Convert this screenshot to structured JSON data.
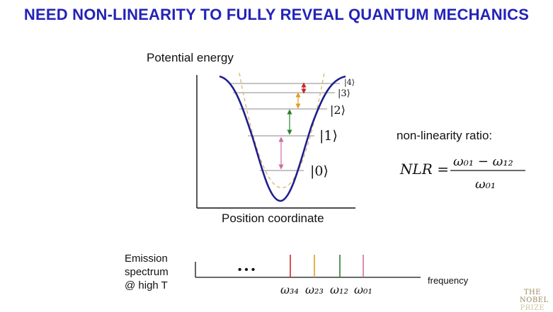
{
  "title": "NEED NON-LINEARITY TO FULLY REVEAL QUANTUM MECHANICS",
  "potential_plot": {
    "y_axis_label": "Potential energy",
    "x_axis_label": "Position coordinate",
    "states": [
      {
        "label": "|0⟩"
      },
      {
        "label": "|1⟩"
      },
      {
        "label": "|2⟩"
      },
      {
        "label": "|3⟩"
      },
      {
        "label": "|4⟩"
      }
    ],
    "colors": {
      "well": "#1f1f8f",
      "harmonic_reference": "#d8b46a",
      "arrow_01": "#cc6fa0",
      "arrow_12": "#2e7d32",
      "arrow_23": "#e0a020",
      "arrow_34": "#c62828"
    }
  },
  "nlr": {
    "caption": "non-linearity ratio:",
    "lhs": "NLR =",
    "numerator": "ω₀₁ − ω₁₂",
    "denominator": "ω₀₁"
  },
  "spectrum": {
    "label_lines": [
      "Emission",
      "spectrum",
      "@ high T"
    ],
    "ellipsis": "• • •",
    "axis_label": "frequency",
    "lines": [
      {
        "label": "ω₃₄",
        "color": "#c62828"
      },
      {
        "label": "ω₂₃",
        "color": "#e0a020"
      },
      {
        "label": "ω₁₂",
        "color": "#2e7d32"
      },
      {
        "label": "ω₀₁",
        "color": "#cc6fa0"
      }
    ]
  },
  "logo": {
    "lines": [
      "THE",
      "NOBEL",
      "PRIZE"
    ]
  }
}
